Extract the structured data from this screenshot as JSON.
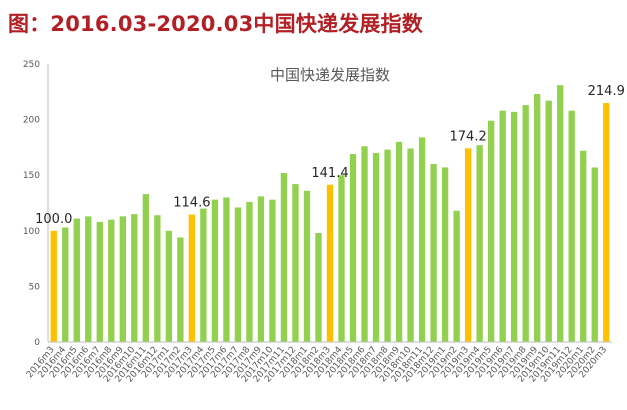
{
  "figure_title": "图：2016.03-2020.03中国快递发展指数",
  "colors": {
    "normal_bar": "#92d050",
    "highlight_bar": "#ffc000",
    "axis": "#bfbfbf",
    "title": "#b21f24"
  },
  "chart_data": {
    "type": "bar",
    "title": "中国快递发展指数",
    "xlabel": "",
    "ylabel": "",
    "ylim": [
      0,
      250
    ],
    "yticks": [
      0,
      50,
      100,
      150,
      200,
      250
    ],
    "grid": false,
    "legend": "none",
    "categories": [
      "2016m3",
      "2016m4",
      "2016m5",
      "2016m6",
      "2016m7",
      "2016m8",
      "2016m9",
      "2016m10",
      "2016m11",
      "2016m12",
      "2017m1",
      "2017m2",
      "2017m3",
      "2017m4",
      "2017m5",
      "2017m6",
      "2017m7",
      "2017m8",
      "2017m9",
      "2017m10",
      "2017m11",
      "2017m12",
      "2018m1",
      "2018m2",
      "2018m3",
      "2018m4",
      "2018m5",
      "2018m6",
      "2018m7",
      "2018m8",
      "2018m9",
      "2018m10",
      "2018m11",
      "2018m12",
      "2019m1",
      "2019m2",
      "2019m3",
      "2019m4",
      "2019m5",
      "2019m6",
      "2019m7",
      "2019m8",
      "2019m9",
      "2019m10",
      "2019m11",
      "2019m12",
      "2020m1",
      "2020m2",
      "2020m3"
    ],
    "values": [
      100.0,
      103,
      111,
      113,
      108,
      110,
      113,
      115,
      133,
      114,
      100,
      94,
      114.6,
      120,
      128,
      130,
      121,
      126,
      131,
      128,
      152,
      142,
      136,
      98,
      141.4,
      150,
      169,
      176,
      170,
      173,
      180,
      174,
      184,
      160,
      157,
      118,
      174.2,
      177,
      199,
      208,
      207,
      213,
      223,
      217,
      231,
      208,
      172,
      157,
      214.9
    ],
    "highlight_indices": [
      0,
      12,
      24,
      36,
      48
    ],
    "data_labels": [
      {
        "index": 0,
        "text": "100.0"
      },
      {
        "index": 12,
        "text": "114.6"
      },
      {
        "index": 24,
        "text": "141.4"
      },
      {
        "index": 36,
        "text": "174.2"
      },
      {
        "index": 48,
        "text": "214.9"
      }
    ]
  }
}
